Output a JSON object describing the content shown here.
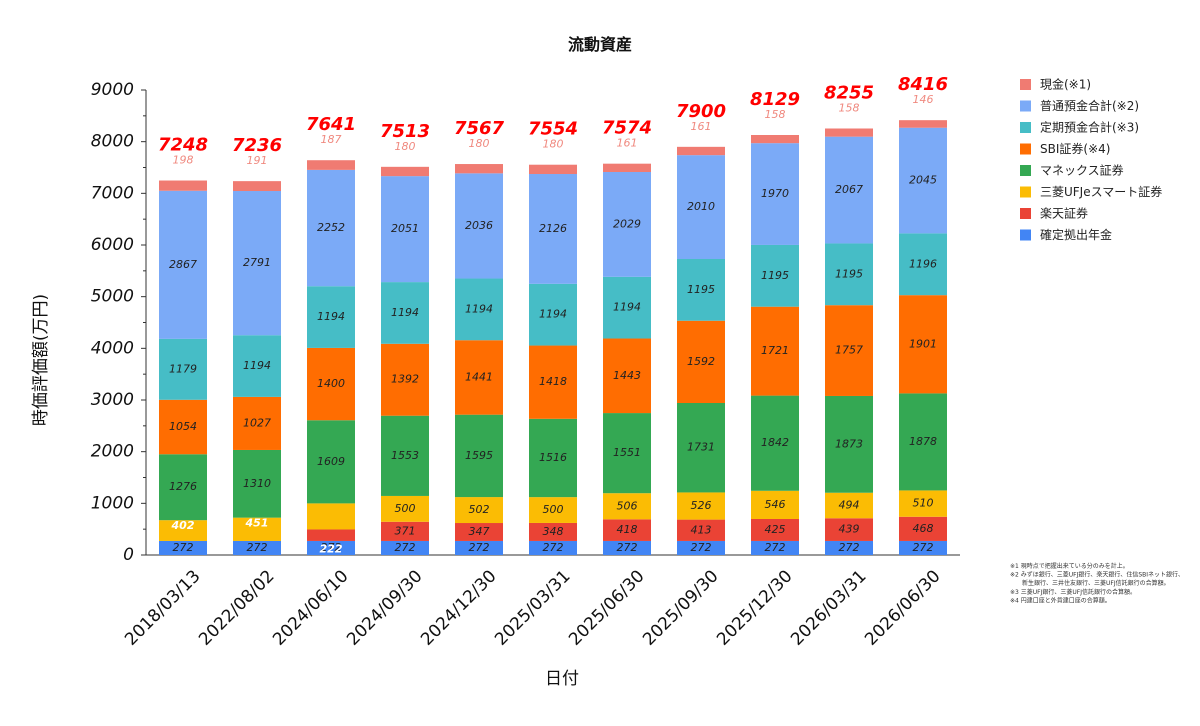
{
  "chart_data": {
    "type": "bar",
    "stacked": true,
    "title": "流動資産",
    "xlabel": "日付",
    "ylabel": "時価評価額(万円)",
    "ylim": [
      0,
      9000
    ],
    "yticks": [
      "0",
      "1000",
      "2000",
      "3000",
      "4000",
      "5000",
      "6000",
      "7000",
      "8000",
      "9000"
    ],
    "grid": false,
    "legend_position": "right",
    "categories": [
      "2018/03/13",
      "2022/08/02",
      "2024/06/10",
      "2024/09/30",
      "2024/12/30",
      "2025/03/31",
      "2025/06/30",
      "2025/09/30",
      "2025/12/30",
      "2026/03/31",
      "2026/06/30"
    ],
    "series": [
      {
        "name": "確定拠出年金",
        "color": "#4285f4",
        "values": [
          272,
          272,
          272,
          272,
          272,
          272,
          272,
          272,
          272,
          272,
          272
        ]
      },
      {
        "name": "楽天証券",
        "color": "#ea4335",
        "values": [
          0,
          0,
          222,
          371,
          347,
          348,
          418,
          413,
          425,
          439,
          468
        ]
      },
      {
        "name": "三菱UFJeスマート証券",
        "color": "#fbbc04",
        "values": [
          402,
          451,
          505,
          500,
          502,
          500,
          506,
          526,
          546,
          494,
          510
        ]
      },
      {
        "name": "マネックス証券",
        "color": "#34a853",
        "values": [
          1276,
          1310,
          1609,
          1553,
          1595,
          1516,
          1551,
          1731,
          1842,
          1873,
          1878
        ]
      },
      {
        "name": "SBI証券(※4)",
        "color": "#ff6d01",
        "values": [
          1054,
          1027,
          1400,
          1392,
          1441,
          1418,
          1443,
          1592,
          1721,
          1757,
          1901
        ]
      },
      {
        "name": "定期預金合計(※3)",
        "color": "#46bdc6",
        "values": [
          1179,
          1194,
          1194,
          1194,
          1194,
          1194,
          1194,
          1195,
          1195,
          1195,
          1196
        ]
      },
      {
        "name": "普通預金合計(※2)",
        "color": "#7baaf7",
        "values": [
          2867,
          2791,
          2252,
          2051,
          2036,
          2126,
          2029,
          2010,
          1970,
          2067,
          2045
        ]
      },
      {
        "name": "現金(※1)",
        "color": "#f07b72",
        "values": [
          198,
          191,
          187,
          180,
          180,
          180,
          161,
          161,
          158,
          158,
          146
        ]
      }
    ],
    "totals": [
      7248,
      7236,
      7641,
      7513,
      7567,
      7554,
      7574,
      7900,
      8129,
      8255,
      8416
    ],
    "legend_order": [
      "現金(※1)",
      "普通預金合計(※2)",
      "定期預金合計(※3)",
      "SBI証券(※4)",
      "マネックス証券",
      "三菱UFJeスマート証券",
      "楽天証券",
      "確定拠出年金"
    ]
  },
  "footnotes": [
    "※1 現時点で把握出来ている分のみを計上。",
    "※2 みずほ銀行、三菱UFJ銀行、楽天銀行、住信SBIネット銀行、",
    "新生銀行、三井住友銀行、三菱UFJ信託銀行の合算額。",
    "※3 三菱UFJ銀行、三菱UFJ信託銀行の合算額。",
    "※4 円建口座と外貨建口座の合算額。"
  ]
}
